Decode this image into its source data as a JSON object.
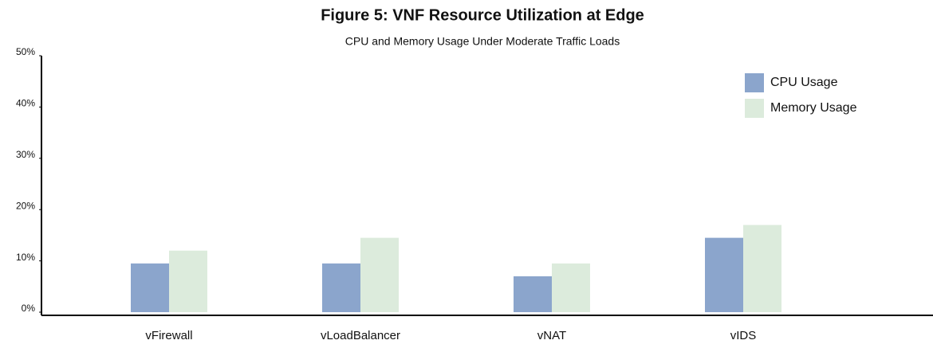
{
  "chart_data": {
    "type": "bar",
    "title": "Figure 5: VNF Resource Utilization at Edge",
    "subtitle": "CPU and Memory Usage Under Moderate Traffic Loads",
    "categories": [
      "vFirewall",
      "vLoadBalancer",
      "vNAT",
      "vIDS"
    ],
    "series": [
      {
        "name": "CPU Usage",
        "color": "#8ba5cc",
        "values": [
          9.5,
          9.5,
          7,
          14.5
        ]
      },
      {
        "name": "Memory Usage",
        "color": "#dcebdc",
        "values": [
          12,
          14.5,
          9.5,
          17
        ]
      }
    ],
    "ylim": [
      0,
      50
    ],
    "yticks": [
      {
        "value": 0,
        "label": "0%"
      },
      {
        "value": 10,
        "label": "10%"
      },
      {
        "value": 20,
        "label": "20%"
      },
      {
        "value": 30,
        "label": "30%"
      },
      {
        "value": 40,
        "label": "40%"
      },
      {
        "value": 50,
        "label": "50%"
      }
    ],
    "grid": false,
    "legend": "upper right"
  }
}
